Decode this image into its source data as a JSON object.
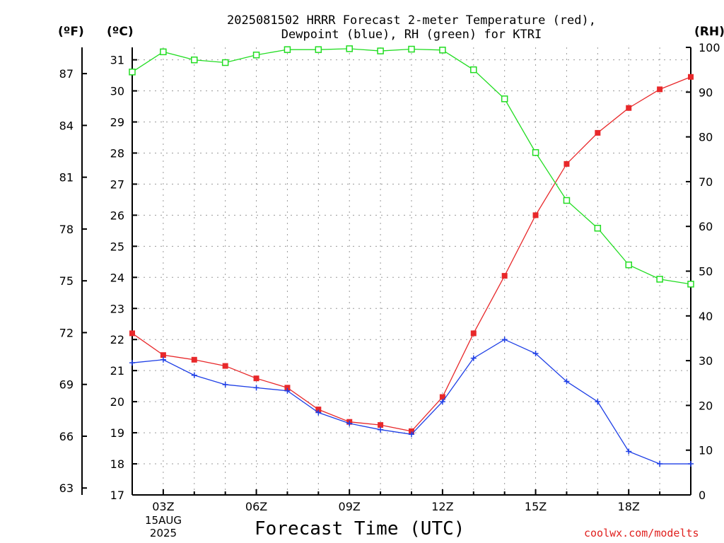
{
  "title_line1": "2025081502 HRRR Forecast 2-meter Temperature (red),",
  "title_line2": "Dewpoint (blue), RH (green) for KTRI",
  "units": {
    "f": "(ºF)",
    "c": "(ºC)",
    "rh": "(RH)"
  },
  "xlabel": "Forecast Time (UTC)",
  "credit": "coolwx.com/modelts",
  "date_label": {
    "day": "15AUG",
    "year": "2025"
  },
  "chart_data": {
    "type": "line",
    "x": [
      2,
      3,
      4,
      5,
      6,
      7,
      8,
      9,
      10,
      11,
      12,
      13,
      14,
      15,
      16,
      17,
      18,
      19,
      20
    ],
    "x_tick_positions": [
      3,
      6,
      9,
      12,
      15,
      18
    ],
    "x_tick_labels": [
      "03Z",
      "06Z",
      "09Z",
      "12Z",
      "15Z",
      "18Z"
    ],
    "xlim": [
      2,
      20
    ],
    "y_left_c": {
      "ylim": [
        17,
        31.4
      ],
      "ticks": [
        17,
        18,
        19,
        20,
        21,
        22,
        23,
        24,
        25,
        26,
        27,
        28,
        29,
        30,
        31
      ]
    },
    "y_left_f": {
      "ticks": [
        63,
        66,
        69,
        72,
        75,
        78,
        81,
        84,
        87
      ]
    },
    "y_right_rh": {
      "ylim": [
        0,
        100
      ],
      "ticks": [
        0,
        10,
        20,
        30,
        40,
        50,
        60,
        70,
        80,
        90,
        100
      ]
    },
    "grid": true,
    "series": [
      {
        "name": "Temperature",
        "axis": "c",
        "color": "#e8282a",
        "marker": "filled-square",
        "values": [
          22.2,
          21.5,
          21.35,
          21.15,
          20.75,
          20.45,
          19.75,
          19.35,
          19.25,
          19.05,
          20.15,
          22.2,
          24.05,
          26.0,
          27.65,
          28.65,
          29.45,
          30.05,
          30.45
        ]
      },
      {
        "name": "Dewpoint",
        "axis": "c",
        "color": "#1e3fe6",
        "marker": "plus",
        "values": [
          21.25,
          21.35,
          20.85,
          20.55,
          20.45,
          20.35,
          19.65,
          19.3,
          19.1,
          18.95,
          20.0,
          21.4,
          22.0,
          21.55,
          20.65,
          20.0,
          18.4,
          18.0,
          18.0
        ]
      },
      {
        "name": "RH",
        "axis": "rh",
        "color": "#22dd22",
        "marker": "open-square",
        "values": [
          94.5,
          99.0,
          97.2,
          96.6,
          98.3,
          99.5,
          99.5,
          99.7,
          99.2,
          99.6,
          99.4,
          95.0,
          88.5,
          76.5,
          65.8,
          59.6,
          51.4,
          48.2,
          47.1
        ]
      }
    ]
  }
}
